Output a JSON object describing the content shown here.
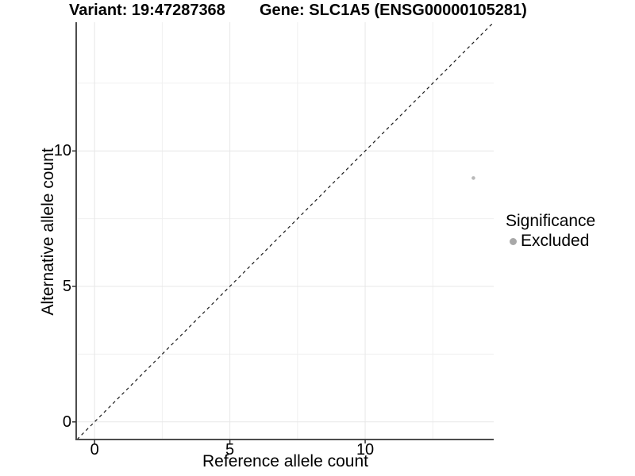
{
  "header": {
    "variant_title": "Variant: 19:47287368",
    "gene_title": "Gene: SLC1A5 (ENSG00000105281)"
  },
  "chart_data": {
    "type": "scatter",
    "title": "Variant: 19:47287368  Gene: SLC1A5 (ENSG00000105281)",
    "xlabel": "Reference allele count",
    "ylabel": "Alternative allele count",
    "xlim": [
      -0.65,
      14.75
    ],
    "ylim": [
      -0.65,
      14.75
    ],
    "x_ticks": [
      0,
      5,
      10
    ],
    "y_ticks": [
      0,
      5,
      10
    ],
    "minor_gridlines": [
      2.5,
      7.5,
      12.5
    ],
    "grid": true,
    "legend_position": "right",
    "reference_line": {
      "style": "dashed",
      "equation": "y = x",
      "color": "#1a1a1a"
    },
    "series": [
      {
        "name": "Excluded",
        "color": "#b9b9b9",
        "points": [
          {
            "x": 14,
            "y": 9
          }
        ]
      }
    ]
  },
  "legend": {
    "title": "Significance",
    "items": [
      {
        "label": "Excluded",
        "color": "#a8a8a8"
      }
    ]
  },
  "style": {
    "major_grid_color": "#e7e7e7",
    "minor_grid_color": "#f0f0f0",
    "axis_line_color": "#4d4d4d",
    "tick_color": "#333333",
    "point_radius": 2.3,
    "background": "#ffffff"
  }
}
